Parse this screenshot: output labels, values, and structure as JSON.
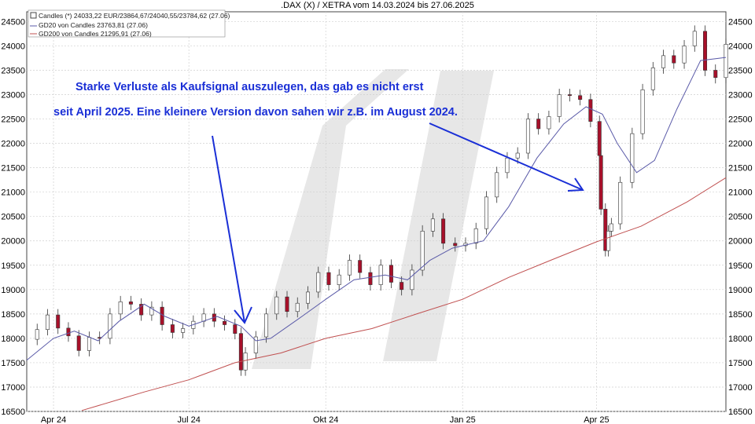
{
  "chart_data": {
    "type": "line",
    "title": ".DAX (X) / XETRA vom 14.03.2024 bis 27.06.2025",
    "xlabel": "",
    "ylabel": "",
    "x_range": [
      "2024-03-14",
      "2025-06-27"
    ],
    "ylim": [
      16500,
      24700
    ],
    "y_ticks": [
      16500,
      17000,
      17500,
      18000,
      18500,
      19000,
      19500,
      20000,
      20500,
      21000,
      21500,
      22000,
      22500,
      23000,
      23500,
      24000,
      24500
    ],
    "x_ticks": [
      {
        "date": "2024-04-01",
        "label": "Apr 24"
      },
      {
        "date": "2024-07-01",
        "label": "Jul 24"
      },
      {
        "date": "2024-10-01",
        "label": "Okt 24"
      },
      {
        "date": "2025-01-01",
        "label": "Jan 25"
      },
      {
        "date": "2025-04-01",
        "label": "Apr 25"
      }
    ],
    "grid": true,
    "legend": {
      "placement": "top-left",
      "entries": [
        {
          "label": "Candles (*) 24033,22 EUR/23864,67/24040,55/23784,62 (27.06)",
          "color": "#444444",
          "kind": "box"
        },
        {
          "label": "GD20 von Candles 23763,81 (27.06)",
          "color": "#5a5aa8",
          "kind": "line"
        },
        {
          "label": "GD200 von Candles 21295,91 (27.06)",
          "color": "#c05050",
          "kind": "line"
        }
      ]
    },
    "colors": {
      "up": "#ffffff",
      "down": "#a8102a",
      "outline": "#333333",
      "gd20": "#5a5aa8",
      "gd200": "#c05050",
      "annotation": "#1a2fd6"
    },
    "close_series": [
      [
        "2024-03-14",
        17980
      ],
      [
        "2024-03-21",
        18180
      ],
      [
        "2024-03-28",
        18480
      ],
      [
        "2024-04-04",
        18210
      ],
      [
        "2024-04-11",
        18050
      ],
      [
        "2024-04-18",
        17750
      ],
      [
        "2024-04-25",
        18020
      ],
      [
        "2024-05-02",
        18000
      ],
      [
        "2024-05-09",
        18500
      ],
      [
        "2024-05-16",
        18750
      ],
      [
        "2024-05-23",
        18700
      ],
      [
        "2024-05-30",
        18480
      ],
      [
        "2024-06-06",
        18640
      ],
      [
        "2024-06-13",
        18280
      ],
      [
        "2024-06-20",
        18120
      ],
      [
        "2024-06-27",
        18200
      ],
      [
        "2024-07-04",
        18350
      ],
      [
        "2024-07-11",
        18500
      ],
      [
        "2024-07-18",
        18350
      ],
      [
        "2024-07-25",
        18280
      ],
      [
        "2024-08-01",
        18100
      ],
      [
        "2024-08-05",
        17350
      ],
      [
        "2024-08-08",
        17700
      ],
      [
        "2024-08-15",
        18030
      ],
      [
        "2024-08-22",
        18500
      ],
      [
        "2024-08-29",
        18850
      ],
      [
        "2024-09-05",
        18550
      ],
      [
        "2024-09-12",
        18720
      ],
      [
        "2024-09-19",
        18950
      ],
      [
        "2024-09-26",
        19350
      ],
      [
        "2024-10-03",
        19100
      ],
      [
        "2024-10-10",
        19300
      ],
      [
        "2024-10-17",
        19600
      ],
      [
        "2024-10-24",
        19350
      ],
      [
        "2024-10-31",
        19100
      ],
      [
        "2024-11-07",
        19500
      ],
      [
        "2024-11-14",
        19150
      ],
      [
        "2024-11-21",
        19000
      ],
      [
        "2024-11-28",
        19400
      ],
      [
        "2024-12-05",
        20200
      ],
      [
        "2024-12-12",
        20450
      ],
      [
        "2024-12-19",
        19950
      ],
      [
        "2024-12-27",
        19900
      ],
      [
        "2025-01-03",
        19950
      ],
      [
        "2025-01-10",
        20250
      ],
      [
        "2025-01-17",
        20900
      ],
      [
        "2025-01-24",
        21400
      ],
      [
        "2025-01-31",
        21700
      ],
      [
        "2025-02-07",
        21800
      ],
      [
        "2025-02-14",
        22500
      ],
      [
        "2025-02-21",
        22300
      ],
      [
        "2025-02-28",
        22550
      ],
      [
        "2025-03-07",
        23000
      ],
      [
        "2025-03-14",
        22980
      ],
      [
        "2025-03-21",
        22900
      ],
      [
        "2025-03-28",
        22450
      ],
      [
        "2025-04-03",
        21750
      ],
      [
        "2025-04-04",
        20650
      ],
      [
        "2025-04-07",
        19800
      ],
      [
        "2025-04-09",
        20200
      ],
      [
        "2025-04-11",
        20350
      ],
      [
        "2025-04-17",
        21200
      ],
      [
        "2025-04-25",
        22200
      ],
      [
        "2025-05-02",
        23100
      ],
      [
        "2025-05-09",
        23550
      ],
      [
        "2025-05-16",
        23800
      ],
      [
        "2025-05-23",
        23650
      ],
      [
        "2025-05-30",
        24000
      ],
      [
        "2025-06-06",
        24300
      ],
      [
        "2025-06-13",
        23500
      ],
      [
        "2025-06-20",
        23350
      ],
      [
        "2025-06-27",
        24033
      ]
    ],
    "gd20_series": [
      [
        "2024-03-14",
        17550
      ],
      [
        "2024-04-01",
        18000
      ],
      [
        "2024-04-15",
        18150
      ],
      [
        "2024-05-01",
        17950
      ],
      [
        "2024-05-15",
        18350
      ],
      [
        "2024-06-01",
        18700
      ],
      [
        "2024-06-15",
        18450
      ],
      [
        "2024-07-01",
        18250
      ],
      [
        "2024-07-20",
        18450
      ],
      [
        "2024-08-05",
        18250
      ],
      [
        "2024-08-15",
        17950
      ],
      [
        "2024-08-25",
        18000
      ],
      [
        "2024-09-15",
        18450
      ],
      [
        "2024-10-01",
        18800
      ],
      [
        "2024-10-20",
        19200
      ],
      [
        "2024-11-10",
        19300
      ],
      [
        "2024-11-25",
        19200
      ],
      [
        "2024-12-10",
        19600
      ],
      [
        "2024-12-25",
        19850
      ],
      [
        "2025-01-15",
        20000
      ],
      [
        "2025-02-01",
        20700
      ],
      [
        "2025-02-20",
        21700
      ],
      [
        "2025-03-10",
        22400
      ],
      [
        "2025-03-25",
        22750
      ],
      [
        "2025-04-05",
        22600
      ],
      [
        "2025-04-15",
        22000
      ],
      [
        "2025-04-28",
        21400
      ],
      [
        "2025-05-10",
        21650
      ],
      [
        "2025-05-25",
        22700
      ],
      [
        "2025-06-10",
        23700
      ],
      [
        "2025-06-27",
        23764
      ]
    ],
    "gd200_series": [
      [
        "2024-04-20",
        16520
      ],
      [
        "2024-06-01",
        16900
      ],
      [
        "2024-07-01",
        17150
      ],
      [
        "2024-08-01",
        17500
      ],
      [
        "2024-09-01",
        17700
      ],
      [
        "2024-10-01",
        18000
      ],
      [
        "2024-11-01",
        18200
      ],
      [
        "2024-12-01",
        18500
      ],
      [
        "2025-01-01",
        18800
      ],
      [
        "2025-02-01",
        19250
      ],
      [
        "2025-03-01",
        19600
      ],
      [
        "2025-04-01",
        19980
      ],
      [
        "2025-05-01",
        20300
      ],
      [
        "2025-06-01",
        20800
      ],
      [
        "2025-06-27",
        21296
      ]
    ],
    "annotation": {
      "line1": "Starke Verluste als Kaufsignal auszulegen, das gab es nicht erst",
      "line2": "seit April 2025. Eine kleinere Version davon sahen wir z.B. im August 2024."
    }
  }
}
